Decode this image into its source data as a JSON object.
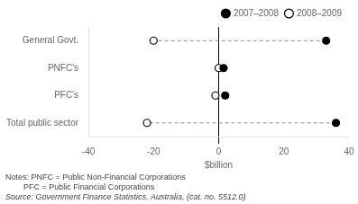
{
  "chart_data": {
    "type": "dot",
    "orientation": "horizontal",
    "xlabel": "$billion",
    "categories": [
      "General Govt.",
      "PNFC's",
      "PFC's",
      "Total public sector"
    ],
    "series": [
      {
        "name": "2007–2008",
        "color": "#000000",
        "marker": "filled_circle",
        "values": [
          33,
          1.5,
          2,
          36
        ]
      },
      {
        "name": "2008–2009",
        "color": "#000000",
        "marker": "open_circle",
        "values": [
          -20,
          0,
          -1,
          -22
        ]
      }
    ],
    "xlim": [
      -40,
      40
    ],
    "xticks": [
      -40,
      -20,
      0,
      20,
      40
    ],
    "grid": false,
    "legend": "upper right",
    "annotations": [
      "Notes: PNFC = Public Non-Financial Corporations",
      "        PFC = Public Financial Corporations",
      "Source: Government Finance Statistics, Australia, (cat. no. 5512.0)"
    ]
  }
}
